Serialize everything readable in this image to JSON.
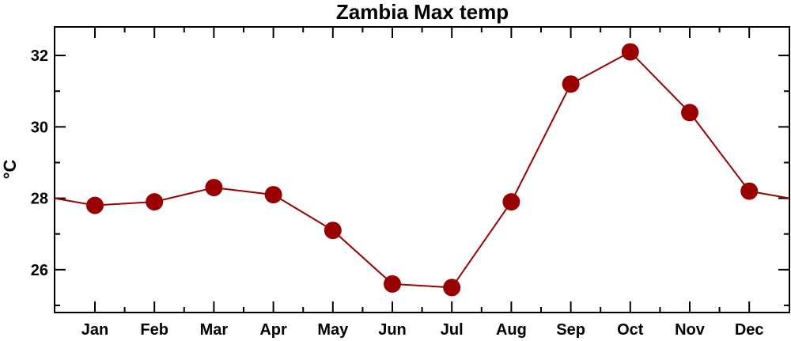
{
  "chart_data": {
    "type": "line",
    "title": "Zambia Max temp",
    "xlabel": "",
    "ylabel": "°C",
    "categories": [
      "Jan",
      "Feb",
      "Mar",
      "Apr",
      "May",
      "Jun",
      "Jul",
      "Aug",
      "Sep",
      "Oct",
      "Nov",
      "Dec"
    ],
    "series": [
      {
        "values": [
          27.8,
          27.9,
          28.3,
          28.1,
          27.1,
          25.6,
          25.5,
          27.9,
          31.2,
          32.1,
          30.4,
          28.2
        ]
      }
    ],
    "yticks": [
      26,
      28,
      30,
      32
    ],
    "ylim": [
      24.8,
      32.8
    ],
    "color": "#990000",
    "grid": false,
    "legend": "none"
  }
}
